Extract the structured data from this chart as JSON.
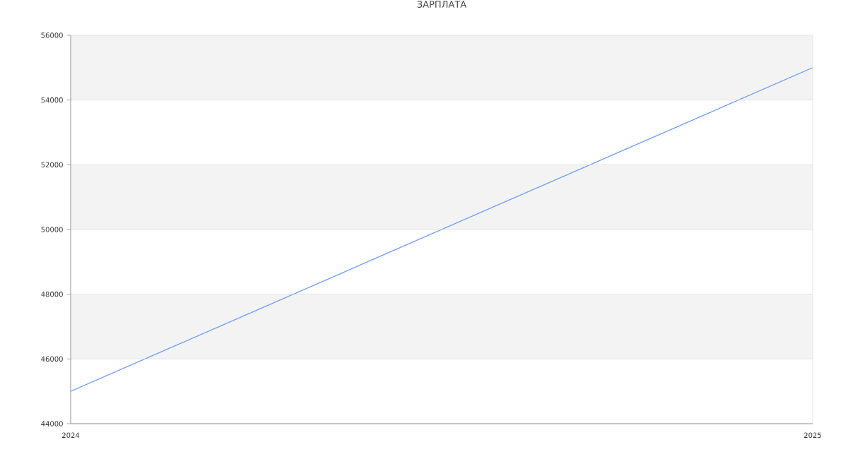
{
  "chart_data": {
    "type": "line",
    "title": "ЗАРПЛАТА",
    "x": [
      2024,
      2025
    ],
    "values": [
      45000,
      55000
    ],
    "color": "#75a0f0",
    "xlim": [
      2024,
      2025
    ],
    "xticks": [
      2024,
      2025
    ],
    "ylim": [
      44000,
      56000
    ],
    "yticks": [
      44000,
      46000,
      48000,
      50000,
      52000,
      54000,
      56000
    ],
    "grid": true,
    "bands": [
      {
        "axis": "y",
        "from": 46000,
        "to": 48000,
        "color": "#f3f3f3"
      },
      {
        "axis": "y",
        "from": 50000,
        "to": 52000,
        "color": "#f3f3f3"
      },
      {
        "axis": "y",
        "from": 54000,
        "to": 56000,
        "color": "#f3f3f3"
      }
    ]
  }
}
